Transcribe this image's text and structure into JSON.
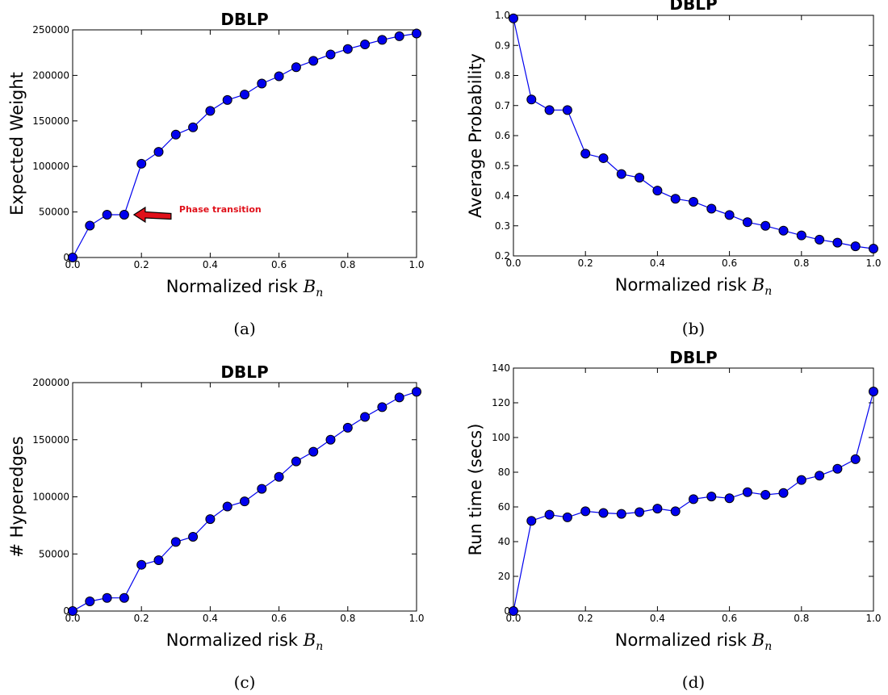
{
  "chart_data": [
    {
      "id": "a",
      "type": "line",
      "caption": "(a)",
      "title": "DBLP",
      "xlabel": "Normalized risk",
      "xlabel_math": "B",
      "xlabel_sub": "n",
      "ylabel": "Expected Weight",
      "xlim": [
        0,
        1
      ],
      "ylim": [
        0,
        250000
      ],
      "xticks": [
        0,
        0.2,
        0.4,
        0.6,
        0.8,
        1
      ],
      "xtick_labels": [
        "0.0",
        "0.2",
        "0.4",
        "0.6",
        "0.8",
        "1.0"
      ],
      "yticks": [
        0,
        50000,
        100000,
        150000,
        200000,
        250000
      ],
      "ytick_labels": [
        "0",
        "50000",
        "100000",
        "150000",
        "200000",
        "250000"
      ],
      "grid": false,
      "marker_color": "#0000ee",
      "line_color": "#0000ee",
      "annotation": {
        "text": "Phase transition",
        "x": 0.15,
        "y": 47000,
        "color": "#e0101a"
      },
      "series": [
        {
          "x": [
            0,
            0.05,
            0.1,
            0.15,
            0.2,
            0.25,
            0.3,
            0.35,
            0.4,
            0.45,
            0.5,
            0.55,
            0.6,
            0.65,
            0.7,
            0.75,
            0.8,
            0.85,
            0.9,
            0.95,
            1.0
          ],
          "y": [
            0,
            35000,
            47000,
            47000,
            103000,
            116000,
            135000,
            143000,
            161000,
            173000,
            179000,
            191000,
            199000,
            209000,
            216000,
            223000,
            229000,
            234000,
            239000,
            243000,
            246000
          ]
        }
      ]
    },
    {
      "id": "b",
      "type": "line",
      "caption": "(b)",
      "title": "DBLP",
      "xlabel": "Normalized risk",
      "xlabel_math": "B",
      "xlabel_sub": "n",
      "ylabel": "Average Probability",
      "xlim": [
        0,
        1
      ],
      "ylim": [
        0.2,
        1.0
      ],
      "xticks": [
        0,
        0.2,
        0.4,
        0.6,
        0.8,
        1
      ],
      "xtick_labels": [
        "0.0",
        "0.2",
        "0.4",
        "0.6",
        "0.8",
        "1.0"
      ],
      "yticks": [
        0.2,
        0.3,
        0.4,
        0.5,
        0.6,
        0.7,
        0.8,
        0.9,
        1.0
      ],
      "ytick_labels": [
        "0.2",
        "0.3",
        "0.4",
        "0.5",
        "0.6",
        "0.7",
        "0.8",
        "0.9",
        "1.0"
      ],
      "grid": false,
      "marker_color": "#0000ee",
      "line_color": "#0000ee",
      "series": [
        {
          "x": [
            0,
            0.05,
            0.1,
            0.15,
            0.2,
            0.25,
            0.3,
            0.35,
            0.4,
            0.45,
            0.5,
            0.55,
            0.6,
            0.65,
            0.7,
            0.75,
            0.8,
            0.85,
            0.9,
            0.95,
            1.0
          ],
          "y": [
            0.99,
            0.72,
            0.685,
            0.685,
            0.54,
            0.525,
            0.472,
            0.46,
            0.417,
            0.39,
            0.38,
            0.357,
            0.336,
            0.312,
            0.3,
            0.284,
            0.268,
            0.254,
            0.244,
            0.232,
            0.224
          ]
        }
      ]
    },
    {
      "id": "c",
      "type": "line",
      "caption": "(c)",
      "title": "DBLP",
      "xlabel": "Normalized risk",
      "xlabel_math": "B",
      "xlabel_sub": "n",
      "ylabel": "# Hyperedges",
      "xlim": [
        0,
        1
      ],
      "ylim": [
        0,
        200000
      ],
      "xticks": [
        0,
        0.2,
        0.4,
        0.6,
        0.8,
        1
      ],
      "xtick_labels": [
        "0.0",
        "0.2",
        "0.4",
        "0.6",
        "0.8",
        "1.0"
      ],
      "yticks": [
        0,
        50000,
        100000,
        150000,
        200000
      ],
      "ytick_labels": [
        "0",
        "50000",
        "100000",
        "150000",
        "200000"
      ],
      "grid": false,
      "marker_color": "#0000ee",
      "line_color": "#0000ee",
      "series": [
        {
          "x": [
            0,
            0.05,
            0.1,
            0.15,
            0.2,
            0.25,
            0.3,
            0.35,
            0.4,
            0.45,
            0.5,
            0.55,
            0.6,
            0.65,
            0.7,
            0.75,
            0.8,
            0.85,
            0.9,
            0.95,
            1.0
          ],
          "y": [
            0,
            8500,
            11500,
            11500,
            40500,
            44500,
            60500,
            65000,
            80500,
            91500,
            96000,
            107000,
            117500,
            131000,
            139500,
            150000,
            160500,
            170000,
            178500,
            187000,
            192000
          ]
        }
      ]
    },
    {
      "id": "d",
      "type": "line",
      "caption": "(d)",
      "title": "DBLP",
      "xlabel": "Normalized risk",
      "xlabel_math": "B",
      "xlabel_sub": "n",
      "ylabel": "Run time (secs)",
      "xlim": [
        0,
        1
      ],
      "ylim": [
        0,
        140
      ],
      "xticks": [
        0,
        0.2,
        0.4,
        0.6,
        0.8,
        1
      ],
      "xtick_labels": [
        "0.0",
        "0.2",
        "0.4",
        "0.6",
        "0.8",
        "1.0"
      ],
      "yticks": [
        0,
        20,
        40,
        60,
        80,
        100,
        120,
        140
      ],
      "ytick_labels": [
        "0",
        "20",
        "40",
        "60",
        "80",
        "100",
        "120",
        "140"
      ],
      "grid": false,
      "marker_color": "#0000ee",
      "line_color": "#0000ee",
      "series": [
        {
          "x": [
            0,
            0.05,
            0.1,
            0.15,
            0.2,
            0.25,
            0.3,
            0.35,
            0.4,
            0.45,
            0.5,
            0.55,
            0.6,
            0.65,
            0.7,
            0.75,
            0.8,
            0.85,
            0.9,
            0.95,
            1.0
          ],
          "y": [
            0,
            52,
            55.5,
            54,
            57.5,
            56.5,
            56,
            57,
            59,
            57.5,
            64.5,
            66,
            65,
            68.5,
            67,
            68,
            75.5,
            78,
            82,
            87.5,
            126.5
          ]
        }
      ]
    }
  ]
}
